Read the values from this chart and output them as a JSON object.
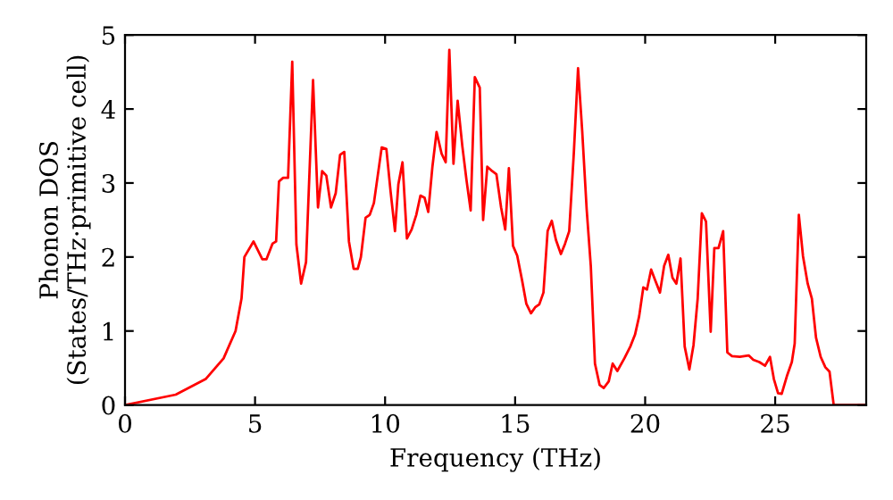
{
  "chart_data": {
    "type": "line",
    "xlabel": "Frequency (THz)",
    "ylabel": "Phonon DOS\n(States/THz·primitive cell)",
    "xlim": [
      0,
      28.5
    ],
    "ylim": [
      0,
      5
    ],
    "xticks": [
      0,
      5,
      10,
      15,
      20,
      25
    ],
    "yticks": [
      0,
      1,
      2,
      3,
      4,
      5
    ],
    "grid": false,
    "legend": false,
    "marker": "none",
    "line_style": "solid",
    "series": [
      {
        "color": "#ff0000",
        "x": [
          0,
          1.95,
          3.1,
          3.79,
          4.25,
          4.48,
          4.59,
          4.94,
          5.28,
          5.44,
          5.67,
          5.81,
          5.92,
          6.08,
          6.27,
          6.43,
          6.59,
          6.77,
          6.96,
          7.23,
          7.42,
          7.58,
          7.74,
          7.92,
          8.1,
          8.27,
          8.43,
          8.61,
          8.79,
          8.95,
          9.07,
          9.25,
          9.41,
          9.57,
          9.87,
          10.05,
          10.21,
          10.38,
          10.51,
          10.67,
          10.84,
          11.02,
          11.2,
          11.36,
          11.52,
          11.66,
          11.82,
          11.98,
          12.17,
          12.33,
          12.47,
          12.63,
          12.79,
          12.97,
          13.13,
          13.29,
          13.45,
          13.64,
          13.77,
          13.93,
          14.12,
          14.28,
          14.46,
          14.62,
          14.76,
          14.92,
          15.08,
          15.27,
          15.43,
          15.61,
          15.77,
          15.93,
          16.09,
          16.25,
          16.41,
          16.57,
          16.76,
          16.92,
          17.08,
          17.26,
          17.42,
          17.58,
          17.75,
          17.91,
          18.07,
          18.25,
          18.41,
          18.6,
          18.75,
          18.93,
          19.2,
          19.43,
          19.61,
          19.77,
          19.93,
          20.07,
          20.23,
          20.39,
          20.57,
          20.73,
          20.89,
          21.05,
          21.2,
          21.36,
          21.52,
          21.7,
          21.86,
          22.02,
          22.18,
          22.34,
          22.52,
          22.66,
          22.82,
          23.0,
          23.16,
          23.34,
          23.64,
          23.98,
          24.16,
          24.39,
          24.61,
          24.8,
          24.95,
          25.11,
          25.25,
          25.45,
          25.64,
          25.75,
          25.91,
          26.07,
          26.25,
          26.41,
          26.57,
          26.75,
          26.93,
          27.09,
          27.25,
          28.41
        ],
        "values": [
          0,
          0.14,
          0.35,
          0.63,
          1.0,
          1.44,
          2.0,
          2.21,
          1.97,
          1.97,
          2.18,
          2.21,
          3.02,
          3.07,
          3.07,
          4.64,
          2.17,
          1.64,
          1.93,
          4.39,
          2.67,
          3.16,
          3.1,
          2.67,
          2.86,
          3.38,
          3.42,
          2.21,
          1.84,
          1.84,
          2.0,
          2.53,
          2.57,
          2.73,
          3.48,
          3.46,
          2.89,
          2.35,
          2.98,
          3.28,
          2.25,
          2.37,
          2.57,
          2.83,
          2.8,
          2.61,
          3.22,
          3.69,
          3.4,
          3.28,
          4.8,
          3.26,
          4.11,
          3.5,
          3.04,
          2.63,
          4.43,
          4.29,
          2.5,
          3.22,
          3.16,
          3.12,
          2.67,
          2.37,
          3.2,
          2.15,
          2.02,
          1.68,
          1.37,
          1.24,
          1.32,
          1.36,
          1.52,
          2.35,
          2.49,
          2.23,
          2.04,
          2.18,
          2.35,
          3.42,
          4.55,
          3.7,
          2.65,
          1.88,
          0.56,
          0.27,
          0.23,
          0.32,
          0.56,
          0.46,
          0.63,
          0.79,
          0.95,
          1.2,
          1.59,
          1.56,
          1.83,
          1.68,
          1.52,
          1.88,
          2.03,
          1.72,
          1.64,
          1.98,
          0.79,
          0.48,
          0.81,
          1.44,
          2.59,
          2.48,
          0.99,
          2.12,
          2.12,
          2.35,
          0.71,
          0.66,
          0.65,
          0.67,
          0.61,
          0.58,
          0.53,
          0.65,
          0.35,
          0.16,
          0.15,
          0.39,
          0.58,
          0.83,
          2.57,
          2.01,
          1.64,
          1.44,
          0.91,
          0.65,
          0.51,
          0.45,
          0,
          0
        ]
      }
    ]
  }
}
